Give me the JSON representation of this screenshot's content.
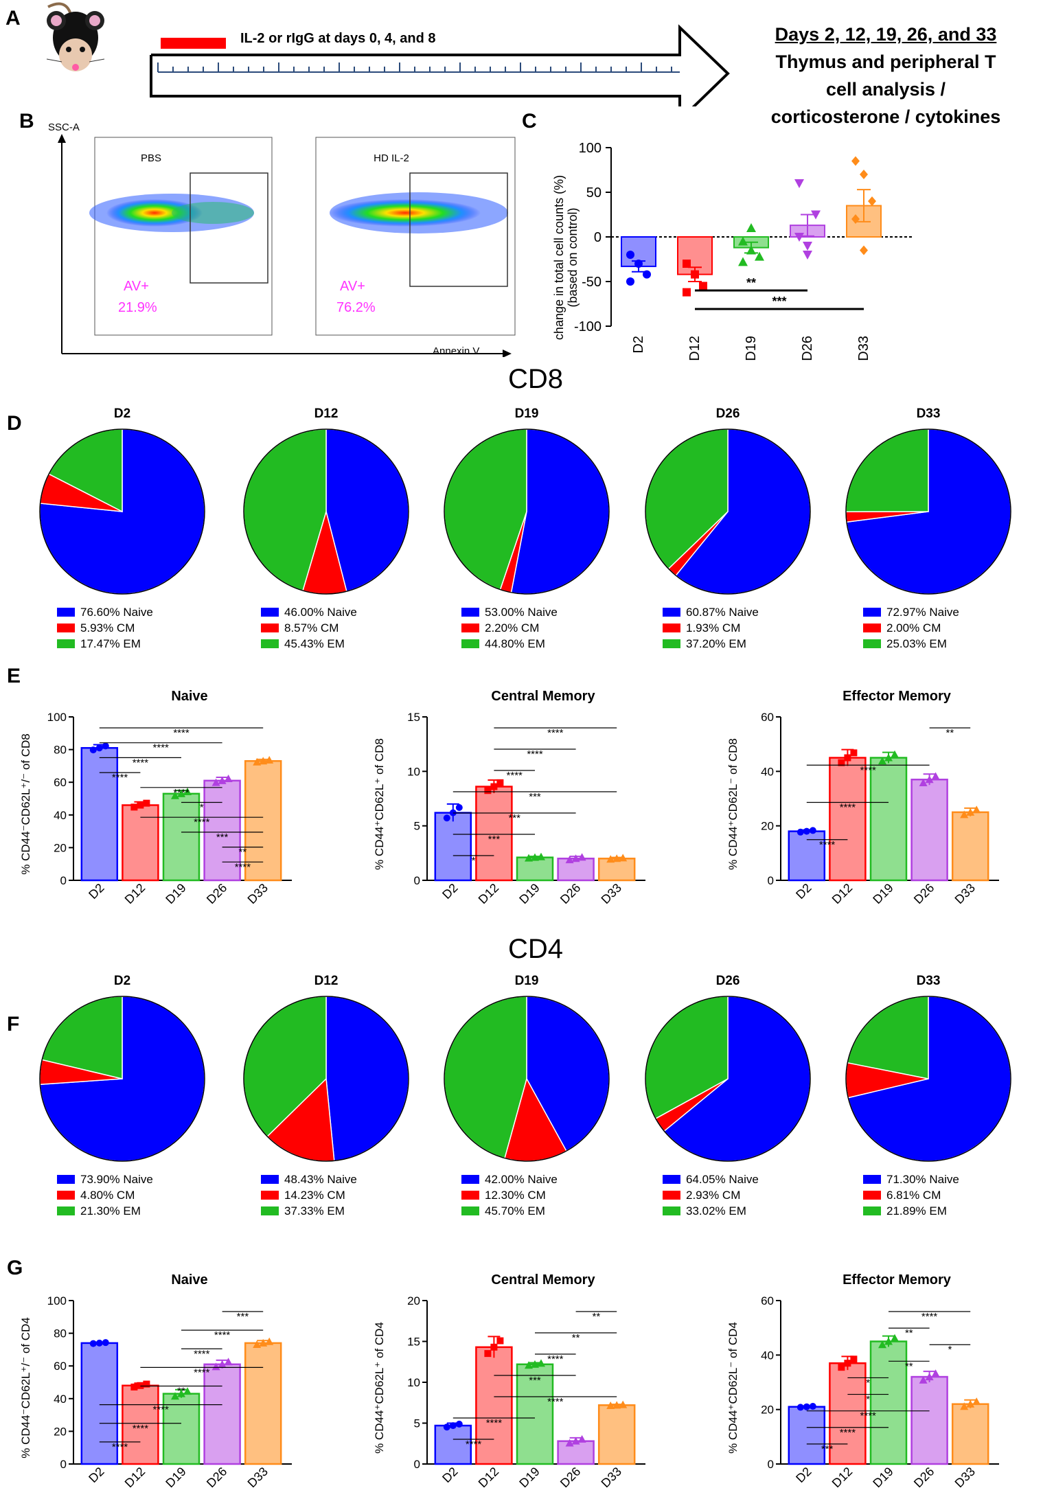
{
  "colors": {
    "blue": "#0000ff",
    "red": "#ff0000",
    "green": "#22bb22",
    "purple": "#b040e0",
    "orange": "#ff8c1a",
    "magenta": "#ff33ff"
  },
  "panelA": {
    "label": "A",
    "treatment": "IL-2 or rIgG at days 0, 4, and 8",
    "days_title": "Days 2, 12, 19, 26, and 33",
    "analysis_lines": [
      "Thymus and peripheral T",
      "cell analysis /",
      "corticosterone / cytokines"
    ]
  },
  "panelB": {
    "label": "B",
    "yaxis": "SSC-A",
    "xaxis": "Annexin V",
    "plots": [
      {
        "title": "PBS",
        "gate_label": "AV+",
        "gate_value": "21.9%"
      },
      {
        "title": "HD IL-2",
        "gate_label": "AV+",
        "gate_value": "76.2%"
      }
    ]
  },
  "panelC": {
    "label": "C",
    "chart_data": {
      "type": "bar",
      "ylabel_lines": [
        "change in total cell counts (%)",
        "(based on control)"
      ],
      "ylim": [
        -100,
        100
      ],
      "yticks": [
        100,
        50,
        0,
        -50,
        -100
      ],
      "categories": [
        "D2",
        "D12",
        "D19",
        "D26",
        "D33"
      ],
      "means": [
        -33,
        -42,
        -12,
        13,
        35
      ],
      "sems": [
        6,
        8,
        6,
        12,
        18
      ],
      "points": [
        [
          -20,
          -30,
          -42,
          -50
        ],
        [
          -30,
          -42,
          -55,
          -62
        ],
        [
          -5,
          -15,
          -22,
          -28,
          10
        ],
        [
          0,
          -20,
          25,
          60,
          -10
        ],
        [
          85,
          70,
          40,
          20,
          -15
        ]
      ],
      "significance": [
        {
          "from": 1,
          "to": 3,
          "label": "**"
        },
        {
          "from": 1,
          "to": 4,
          "label": "***"
        }
      ]
    }
  },
  "cd8_title": "CD8",
  "cd4_title": "CD4",
  "panelD": {
    "label": "D",
    "chart_data": {
      "type": "pie",
      "pies": [
        {
          "title": "D2",
          "naive": 76.6,
          "cm": 5.93,
          "em": 17.47,
          "legend": [
            "76.60%  Naive",
            "5.93%  CM",
            "17.47%  EM"
          ]
        },
        {
          "title": "D12",
          "naive": 46.0,
          "cm": 8.57,
          "em": 45.43,
          "legend": [
            "46.00%  Naive",
            "8.57%  CM",
            "45.43%  EM"
          ]
        },
        {
          "title": "D19",
          "naive": 53.0,
          "cm": 2.2,
          "em": 44.8,
          "legend": [
            "53.00%  Naive",
            "2.20%  CM",
            "44.80%  EM"
          ]
        },
        {
          "title": "D26",
          "naive": 60.87,
          "cm": 1.93,
          "em": 37.2,
          "legend": [
            "60.87%  Naive",
            "1.93%  CM",
            "37.20%  EM"
          ]
        },
        {
          "title": "D33",
          "naive": 72.97,
          "cm": 2.0,
          "em": 25.03,
          "legend": [
            "72.97%  Naive",
            "2.00%  CM",
            "25.03%  EM"
          ]
        }
      ]
    }
  },
  "panelE": {
    "label": "E",
    "chart_data": [
      {
        "type": "bar",
        "title": "Naive",
        "ylabel": "% CD44⁻CD62L⁺/⁻ of CD8",
        "ylim": [
          0,
          100
        ],
        "yticks": [
          0,
          20,
          40,
          60,
          80,
          100
        ],
        "categories": [
          "D2",
          "D12",
          "D19",
          "D26",
          "D33"
        ],
        "values": [
          81,
          46,
          53,
          61,
          73
        ],
        "sems": [
          2,
          2,
          2,
          2,
          1
        ],
        "sigs": [
          {
            "from": 0,
            "to": 4,
            "label": "****"
          },
          {
            "from": 0,
            "to": 3,
            "label": "****"
          },
          {
            "from": 0,
            "to": 2,
            "label": "****"
          },
          {
            "from": 0,
            "to": 1,
            "label": "****"
          },
          {
            "from": 1,
            "to": 3,
            "label": "****"
          },
          {
            "from": 2,
            "to": 3,
            "label": "*"
          },
          {
            "from": 1,
            "to": 4,
            "label": "****"
          },
          {
            "from": 2,
            "to": 4,
            "label": "***"
          },
          {
            "from": 3,
            "to": 4,
            "label": "**"
          },
          {
            "from": 3,
            "to": 4,
            "label": "****"
          }
        ]
      },
      {
        "type": "bar",
        "title": "Central Memory",
        "ylabel": "% CD44⁺CD62L⁺ of CD8",
        "ylim": [
          0,
          15
        ],
        "yticks": [
          0,
          5,
          10,
          15
        ],
        "categories": [
          "D2",
          "D12",
          "D19",
          "D26",
          "D33"
        ],
        "values": [
          6.2,
          8.6,
          2.1,
          2.0,
          2.0
        ],
        "sems": [
          0.8,
          0.6,
          0.1,
          0.2,
          0.1
        ],
        "sigs": [
          {
            "from": 1,
            "to": 4,
            "label": "****"
          },
          {
            "from": 1,
            "to": 3,
            "label": "****"
          },
          {
            "from": 1,
            "to": 2,
            "label": "****"
          },
          {
            "from": 0,
            "to": 4,
            "label": "***"
          },
          {
            "from": 0,
            "to": 3,
            "label": "***"
          },
          {
            "from": 0,
            "to": 2,
            "label": "***"
          },
          {
            "from": 0,
            "to": 1,
            "label": "*"
          }
        ]
      },
      {
        "type": "bar",
        "title": "Effector Memory",
        "ylabel": "% CD44⁺CD62L⁻ of CD8",
        "ylim": [
          0,
          60
        ],
        "yticks": [
          0,
          20,
          40,
          60
        ],
        "categories": [
          "D2",
          "D12",
          "D19",
          "D26",
          "D33"
        ],
        "values": [
          18,
          45,
          45,
          37,
          25
        ],
        "sems": [
          0.5,
          3,
          2,
          2,
          1.5
        ],
        "sigs": [
          {
            "from": 3,
            "to": 4,
            "label": "**"
          },
          {
            "from": 0,
            "to": 3,
            "label": "****"
          },
          {
            "from": 0,
            "to": 2,
            "label": "****"
          },
          {
            "from": 0,
            "to": 1,
            "label": "****"
          }
        ]
      }
    ]
  },
  "panelF": {
    "label": "F",
    "chart_data": {
      "type": "pie",
      "pies": [
        {
          "title": "D2",
          "naive": 73.9,
          "cm": 4.8,
          "em": 21.3,
          "legend": [
            "73.90%  Naive",
            "4.80%  CM",
            "21.30%  EM"
          ]
        },
        {
          "title": "D12",
          "naive": 48.43,
          "cm": 14.23,
          "em": 37.33,
          "legend": [
            "48.43%  Naive",
            "14.23%  CM",
            "37.33%  EM"
          ]
        },
        {
          "title": "D19",
          "naive": 42.0,
          "cm": 12.3,
          "em": 45.7,
          "legend": [
            "42.00%  Naive",
            "12.30%  CM",
            "45.70%  EM"
          ]
        },
        {
          "title": "D26",
          "naive": 64.05,
          "cm": 2.93,
          "em": 33.02,
          "legend": [
            "64.05%  Naive",
            "2.93%  CM",
            "33.02%  EM"
          ]
        },
        {
          "title": "D33",
          "naive": 71.3,
          "cm": 6.81,
          "em": 21.89,
          "legend": [
            "71.30%  Naive",
            "6.81%  CM",
            "21.89%  EM"
          ]
        }
      ]
    }
  },
  "panelG": {
    "label": "G",
    "chart_data": [
      {
        "type": "bar",
        "title": "Naive",
        "ylabel": "% CD44⁻CD62L⁺/⁻ of CD4",
        "ylim": [
          0,
          100
        ],
        "yticks": [
          0,
          20,
          40,
          60,
          80,
          100
        ],
        "categories": [
          "D2",
          "D12",
          "D19",
          "D26",
          "D33"
        ],
        "values": [
          74,
          48,
          43,
          61,
          74
        ],
        "sems": [
          0.5,
          1.5,
          2.5,
          2.5,
          1.5
        ],
        "sigs": [
          {
            "from": 3,
            "to": 4,
            "label": "***"
          },
          {
            "from": 2,
            "to": 4,
            "label": "****"
          },
          {
            "from": 2,
            "to": 3,
            "label": "****"
          },
          {
            "from": 1,
            "to": 4,
            "label": "****"
          },
          {
            "from": 1,
            "to": 3,
            "label": "**"
          },
          {
            "from": 0,
            "to": 3,
            "label": "****"
          },
          {
            "from": 0,
            "to": 2,
            "label": "****"
          },
          {
            "from": 0,
            "to": 1,
            "label": "****"
          }
        ]
      },
      {
        "type": "bar",
        "title": "Central Memory",
        "ylabel": "% CD44⁺CD62L⁺ of CD4",
        "ylim": [
          0,
          20
        ],
        "yticks": [
          0,
          5,
          10,
          15,
          20
        ],
        "categories": [
          "D2",
          "D12",
          "D19",
          "D26",
          "D33"
        ],
        "values": [
          4.7,
          14.3,
          12.2,
          2.8,
          7.2
        ],
        "sems": [
          0.3,
          1.3,
          0.2,
          0.4,
          0.1
        ],
        "sigs": [
          {
            "from": 3,
            "to": 4,
            "label": "**"
          },
          {
            "from": 2,
            "to": 4,
            "label": "**"
          },
          {
            "from": 2,
            "to": 3,
            "label": "****"
          },
          {
            "from": 1,
            "to": 3,
            "label": "***"
          },
          {
            "from": 1,
            "to": 4,
            "label": "****"
          },
          {
            "from": 0,
            "to": 2,
            "label": "****"
          },
          {
            "from": 0,
            "to": 1,
            "label": "****"
          }
        ]
      },
      {
        "type": "bar",
        "title": "Effector Memory",
        "ylabel": "% CD44⁺CD62L⁻ of CD4",
        "ylim": [
          0,
          60
        ],
        "yticks": [
          0,
          20,
          40,
          60
        ],
        "categories": [
          "D2",
          "D12",
          "D19",
          "D26",
          "D33"
        ],
        "values": [
          21,
          37,
          45,
          32,
          22
        ],
        "sems": [
          0.3,
          2.5,
          2,
          2,
          1.5
        ],
        "sigs": [
          {
            "from": 2,
            "to": 4,
            "label": "****"
          },
          {
            "from": 2,
            "to": 3,
            "label": "**"
          },
          {
            "from": 3,
            "to": 4,
            "label": "*"
          },
          {
            "from": 2,
            "to": 3,
            "label": "**"
          },
          {
            "from": 1,
            "to": 2,
            "label": "*"
          },
          {
            "from": 1,
            "to": 2,
            "label": "*"
          },
          {
            "from": 0,
            "to": 3,
            "label": "****"
          },
          {
            "from": 0,
            "to": 2,
            "label": "****"
          },
          {
            "from": 0,
            "to": 1,
            "label": "***"
          }
        ]
      }
    ]
  }
}
